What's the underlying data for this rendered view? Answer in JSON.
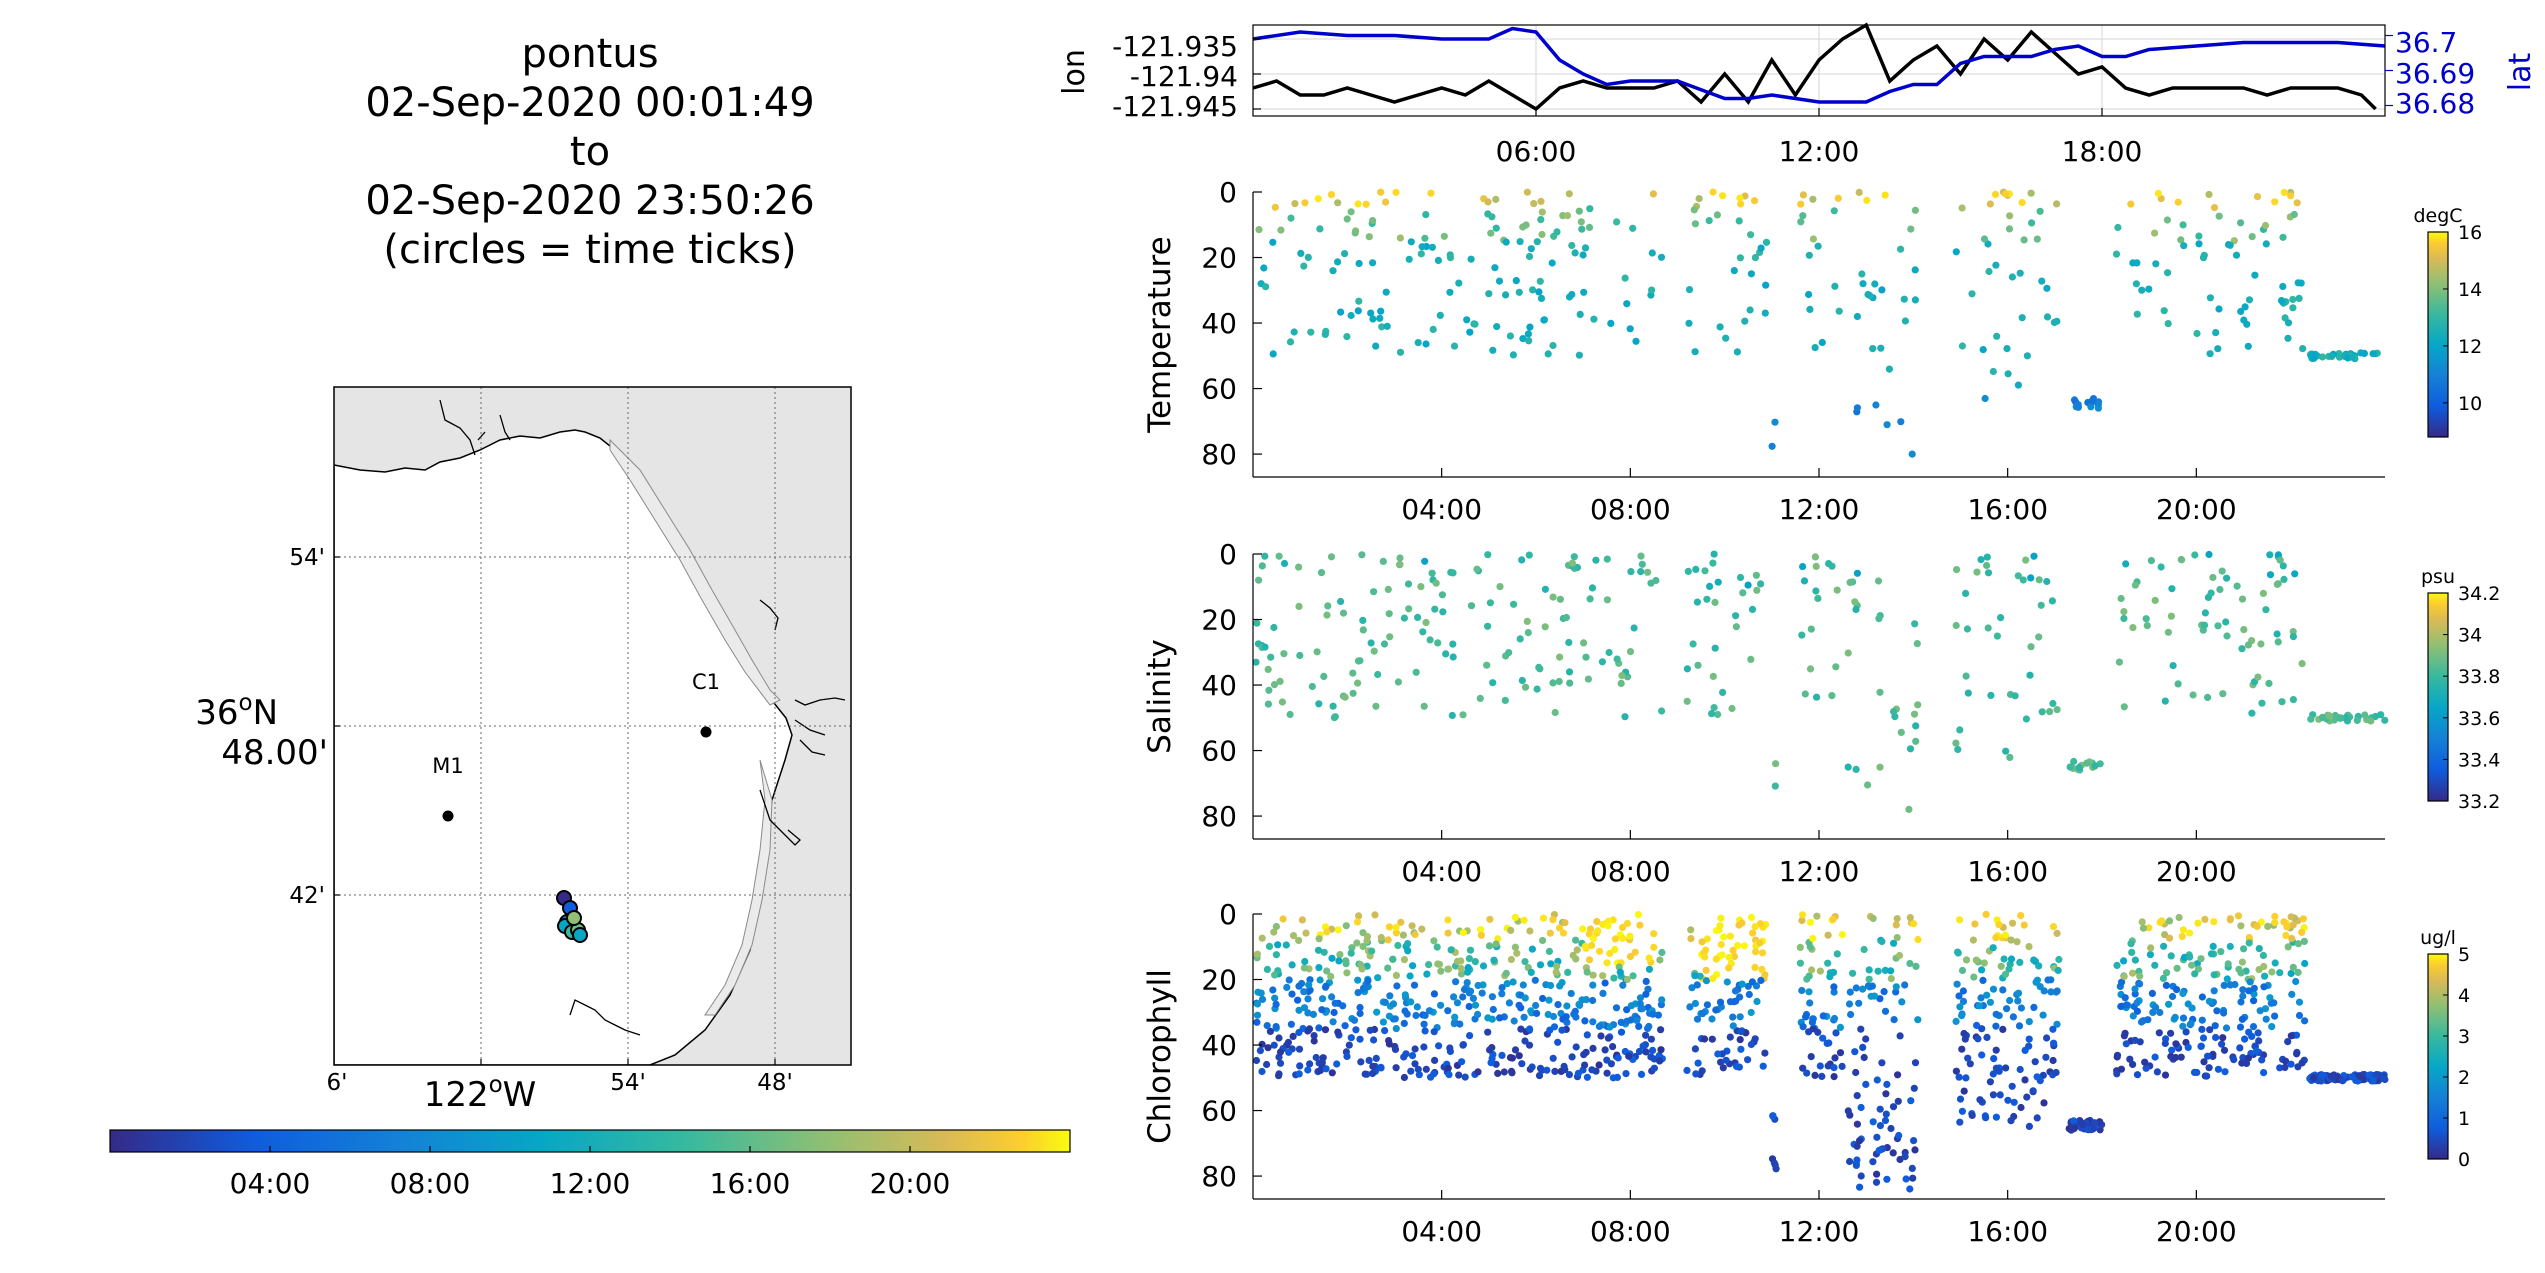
{
  "header": {
    "lines": [
      "pontus",
      "02-Sep-2020 00:01:49",
      "to",
      "02-Sep-2020 23:50:26",
      "(circles = time ticks)"
    ]
  },
  "map": {
    "lat_ticks": [
      "54'",
      "42'"
    ],
    "lat_center_deg": "36",
    "lat_center_min": "48.00'",
    "lat_hemi": "N",
    "lon_ticks": [
      "6'",
      "54'",
      "48'"
    ],
    "lon_center_deg": "122",
    "lon_hemi": "W",
    "deg_symbol": "o",
    "stations": [
      {
        "name": "C1"
      },
      {
        "name": "M1"
      }
    ],
    "colors": {
      "land": "#e5e5e5",
      "ocean": "#ffffff",
      "coast": "#000000"
    }
  },
  "time_colorbar": {
    "ticks": [
      "04:00",
      "08:00",
      "12:00",
      "16:00",
      "20:00"
    ]
  },
  "chart_data": [
    {
      "type": "line",
      "name": "track",
      "ylabel": "lon",
      "y2label": "lat",
      "xticks": [
        "06:00",
        "12:00",
        "18:00"
      ],
      "yticks": [
        "-121.935",
        "-121.94",
        "-121.945"
      ],
      "y2ticks": [
        "36.7",
        "36.69",
        "36.68"
      ],
      "ylim": [
        -121.946,
        -121.933
      ],
      "y2lim": [
        36.677,
        36.703
      ],
      "xlim_hours": [
        0,
        24
      ],
      "grid": true,
      "series": [
        {
          "name": "lon",
          "color": "#000000",
          "x": [
            0,
            0.5,
            1,
            1.5,
            2,
            2.5,
            3,
            3.5,
            4,
            4.5,
            5,
            5.5,
            6,
            6.5,
            7,
            7.5,
            8,
            8.5,
            9,
            9.5,
            10,
            10.5,
            11,
            11.5,
            12,
            12.5,
            13,
            13.5,
            14,
            14.5,
            15,
            15.5,
            16,
            16.5,
            17,
            17.5,
            18,
            18.5,
            19,
            19.5,
            20,
            20.5,
            21,
            21.5,
            22,
            22.5,
            23,
            23.5,
            23.8
          ],
          "y": [
            -121.942,
            -121.941,
            -121.943,
            -121.943,
            -121.942,
            -121.943,
            -121.944,
            -121.943,
            -121.942,
            -121.943,
            -121.941,
            -121.943,
            -121.945,
            -121.942,
            -121.941,
            -121.942,
            -121.942,
            -121.942,
            -121.941,
            -121.944,
            -121.94,
            -121.944,
            -121.938,
            -121.943,
            -121.938,
            -121.935,
            -121.933,
            -121.941,
            -121.938,
            -121.936,
            -121.94,
            -121.935,
            -121.938,
            -121.934,
            -121.937,
            -121.94,
            -121.939,
            -121.942,
            -121.943,
            -121.942,
            -121.942,
            -121.942,
            -121.942,
            -121.943,
            -121.942,
            -121.942,
            -121.942,
            -121.943,
            -121.945
          ]
        },
        {
          "name": "lat",
          "color": "#0000cc",
          "x": [
            0,
            1,
            2,
            3,
            4,
            5,
            5.5,
            6,
            6.5,
            7,
            7.5,
            8,
            9,
            10,
            10.5,
            11,
            12,
            13,
            13.5,
            14,
            14.5,
            15,
            15.5,
            16,
            16.5,
            17,
            17.5,
            18,
            18.5,
            19,
            20,
            21,
            22,
            23,
            24
          ],
          "y": [
            36.699,
            36.701,
            36.7,
            36.7,
            36.699,
            36.699,
            36.702,
            36.701,
            36.693,
            36.689,
            36.686,
            36.687,
            36.687,
            36.682,
            36.682,
            36.683,
            36.681,
            36.681,
            36.684,
            36.686,
            36.686,
            36.692,
            36.694,
            36.694,
            36.694,
            36.696,
            36.697,
            36.694,
            36.694,
            36.696,
            36.697,
            36.698,
            36.698,
            36.698,
            36.697
          ]
        }
      ]
    },
    {
      "type": "scatter",
      "name": "temperature",
      "ylabel": "Temperature",
      "xticks": [
        "04:00",
        "08:00",
        "12:00",
        "16:00",
        "20:00"
      ],
      "yticks": [
        "0",
        "20",
        "40",
        "60",
        "80"
      ],
      "ylim": [
        0,
        87
      ],
      "xlim_hours": [
        0,
        24
      ],
      "colorbar": {
        "label": "degC",
        "ticks": [
          "16",
          "14",
          "12",
          "10"
        ],
        "range": [
          8.8,
          16
        ]
      }
    },
    {
      "type": "scatter",
      "name": "salinity",
      "ylabel": "Salinity",
      "xticks": [
        "04:00",
        "08:00",
        "12:00",
        "16:00",
        "20:00"
      ],
      "yticks": [
        "0",
        "20",
        "40",
        "60",
        "80"
      ],
      "ylim": [
        0,
        87
      ],
      "xlim_hours": [
        0,
        24
      ],
      "colorbar": {
        "label": "psu",
        "ticks": [
          "34.2",
          "34",
          "33.8",
          "33.6",
          "33.4",
          "33.2"
        ],
        "range": [
          33.2,
          34.2
        ]
      }
    },
    {
      "type": "scatter",
      "name": "chlorophyll",
      "ylabel": "Chlorophyll",
      "xticks": [
        "04:00",
        "08:00",
        "12:00",
        "16:00",
        "20:00"
      ],
      "yticks": [
        "0",
        "20",
        "40",
        "60",
        "80"
      ],
      "ylim": [
        0,
        87
      ],
      "xlim_hours": [
        0,
        24
      ],
      "colorbar": {
        "label": "ug/l",
        "ticks": [
          "5",
          "4",
          "3",
          "2",
          "1",
          "0"
        ],
        "range": [
          0,
          5
        ]
      }
    }
  ]
}
